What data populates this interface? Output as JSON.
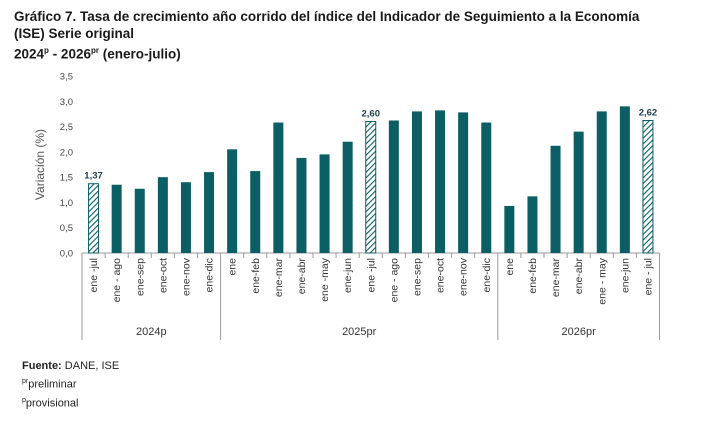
{
  "title": {
    "line1": "Gráfico 7. Tasa de crecimiento año corrido del índice del Indicador de Seguimiento a la Economía",
    "line2": "(ISE) Serie original",
    "line3_years_a": "2024",
    "line3_sup_a": "p",
    "line3_sep": " - 2026",
    "line3_sup_b": "pr",
    "line3_period": " (enero-julio)"
  },
  "source": {
    "label": "Fuente:",
    "text": " DANE, ISE",
    "note1_sup": "pr",
    "note1_text": "preliminar",
    "note2_sup": "p",
    "note2_text": "provisional"
  },
  "colors": {
    "bar": "#0a5e64",
    "hatch": "#0a5e64",
    "axis": "#9a9a9a"
  },
  "chart_data": {
    "type": "bar",
    "ylabel": "Variación (%)",
    "ylim": [
      0,
      3.5
    ],
    "yticks": [
      "0,0",
      "0,5",
      "1,0",
      "1,5",
      "2,0",
      "2,5",
      "3,0",
      "3,5"
    ],
    "grid": false,
    "categories": [
      "ene -jul",
      "ene - ago",
      "ene-sep",
      "ene-oct",
      "ene-nov",
      "ene-dic",
      "ene",
      "ene-feb",
      "ene-mar",
      "ene-abr",
      "ene -may",
      "ene-jun",
      "ene -jul",
      "ene - ago",
      "ene-sep",
      "ene-oct",
      "ene-nov",
      "ene-dic",
      "ene",
      "ene-feb",
      "ene-mar",
      "ene-abr",
      "ene - may",
      "ene-jun",
      "ene - jul"
    ],
    "values": [
      1.37,
      1.35,
      1.27,
      1.5,
      1.4,
      1.6,
      2.05,
      1.62,
      2.58,
      1.88,
      1.95,
      2.2,
      2.6,
      2.62,
      2.8,
      2.82,
      2.78,
      2.58,
      0.93,
      1.12,
      2.12,
      2.4,
      2.8,
      2.9,
      2.62
    ],
    "highlighted": [
      0,
      12,
      24
    ],
    "data_labels": [
      {
        "index": 0,
        "text": "1,37"
      },
      {
        "index": 12,
        "text": "2,60"
      },
      {
        "index": 24,
        "text": "2,62"
      }
    ],
    "groups": [
      {
        "label": "2024p",
        "start": 0,
        "end": 5
      },
      {
        "label": "2025pr",
        "start": 6,
        "end": 17
      },
      {
        "label": "2026pr",
        "start": 18,
        "end": 24
      }
    ]
  }
}
